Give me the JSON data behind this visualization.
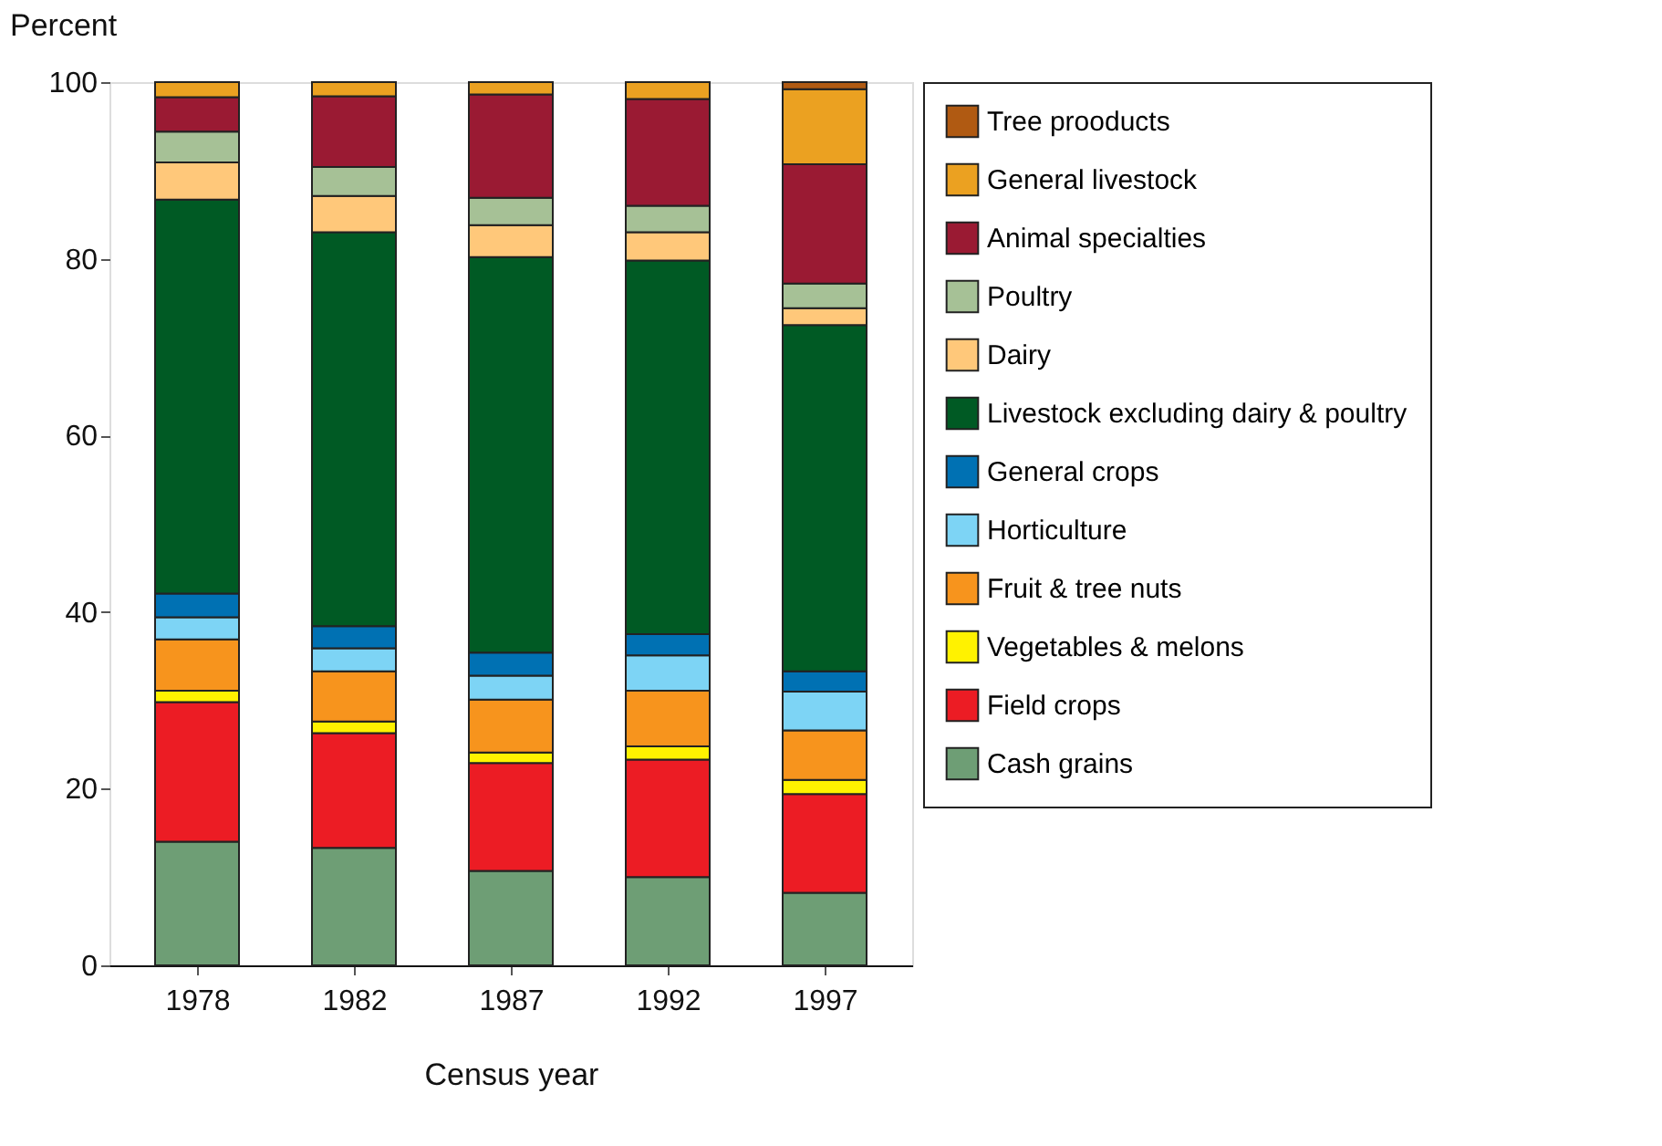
{
  "chart_data": {
    "type": "bar",
    "stacked": true,
    "xlabel": "Census year",
    "ylabel": "Percent",
    "categories": [
      "1978",
      "1982",
      "1987",
      "1992",
      "1997"
    ],
    "ylim": [
      0,
      100
    ],
    "yticks": [
      0,
      20,
      40,
      60,
      80,
      100
    ],
    "grid": false,
    "legend": "right",
    "series": [
      {
        "name": "Cash grains",
        "color": "#6e9e75",
        "values": [
          14.0,
          13.3,
          10.7,
          10.0,
          8.2
        ]
      },
      {
        "name": "Field crops",
        "color": "#ec1c24",
        "values": [
          15.8,
          13.0,
          12.2,
          13.3,
          11.2
        ]
      },
      {
        "name": "Vegetables & melons",
        "color": "#fff200",
        "values": [
          1.3,
          1.3,
          1.2,
          1.5,
          1.6
        ]
      },
      {
        "name": "Fruit & tree nuts",
        "color": "#f7941d",
        "values": [
          5.8,
          5.7,
          6.0,
          6.3,
          5.6
        ]
      },
      {
        "name": "Horticulture",
        "color": "#7dd4f5",
        "values": [
          2.5,
          2.6,
          2.7,
          4.0,
          4.4
        ]
      },
      {
        "name": "General crops",
        "color": "#0071b3",
        "values": [
          2.7,
          2.5,
          2.6,
          2.4,
          2.3
        ]
      },
      {
        "name": "Livestock excluding dairy & poultry",
        "color": "#005a24",
        "values": [
          44.6,
          44.6,
          44.8,
          42.3,
          39.2
        ]
      },
      {
        "name": "Dairy",
        "color": "#ffc87a",
        "values": [
          4.2,
          4.1,
          3.6,
          3.2,
          1.9
        ]
      },
      {
        "name": "Poultry",
        "color": "#a6c196",
        "values": [
          3.5,
          3.3,
          3.1,
          3.0,
          2.8
        ]
      },
      {
        "name": "Animal specialties",
        "color": "#9a1a33",
        "values": [
          3.9,
          8.0,
          11.7,
          12.1,
          13.5
        ]
      },
      {
        "name": "General livestock",
        "color": "#eba121",
        "values": [
          1.7,
          1.6,
          1.4,
          1.9,
          8.5
        ]
      },
      {
        "name": "Tree prooducts",
        "color": "#b05a12",
        "values": [
          null,
          null,
          null,
          null,
          0.8
        ]
      }
    ]
  }
}
